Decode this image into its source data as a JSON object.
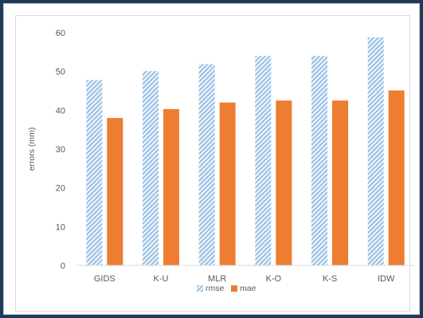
{
  "chart_data": {
    "type": "bar",
    "title": "",
    "xlabel": "",
    "ylabel": "errors (mm)",
    "categories": [
      "GIDS",
      "K-U",
      "MLR",
      "K-O",
      "K-S",
      "IDW"
    ],
    "series": [
      {
        "name": "rmse",
        "values": [
          47.8,
          50.1,
          51.9,
          54.0,
          54.0,
          58.8
        ],
        "color": "#9dc3e6",
        "pattern": "diagonal-hatch"
      },
      {
        "name": "mae",
        "values": [
          38.0,
          40.3,
          42.0,
          42.5,
          42.5,
          45.1
        ],
        "color": "#ed7d31",
        "pattern": "solid"
      }
    ],
    "ylim": [
      0,
      60
    ],
    "yticks": [
      0,
      10,
      20,
      30,
      40,
      50,
      60
    ],
    "grid": false,
    "legend_position": "bottom"
  }
}
